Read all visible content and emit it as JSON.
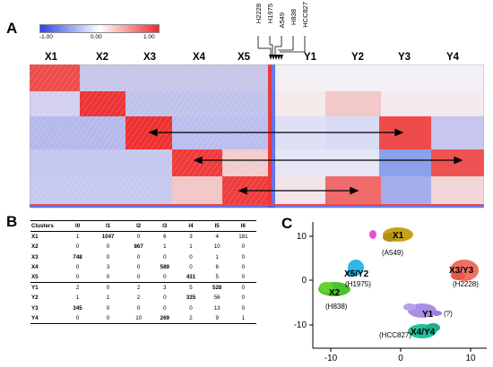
{
  "panels": {
    "a": "A",
    "b": "B",
    "c": "C"
  },
  "colorscale": {
    "min_label": "-1.00",
    "mid_label": "0.00",
    "max_label": "1.00",
    "colors": {
      "low": "#2f45e8",
      "mid": "#ffffff",
      "high": "#ee2b2b"
    }
  },
  "heatmap": {
    "columns": [
      "X1",
      "X2",
      "X3",
      "X4",
      "X5",
      "Y1",
      "Y2",
      "Y3",
      "Y4"
    ],
    "cell_lines": [
      "H2228",
      "H1975",
      "A549",
      "H838",
      "HCC827"
    ]
  },
  "table": {
    "headers": [
      "Clusters",
      "I0",
      "I1",
      "I2",
      "I3",
      "I4",
      "I5",
      "I6"
    ],
    "rows": [
      {
        "label": "X1",
        "cells": [
          "1",
          "1047",
          "0",
          "6",
          "3",
          "4",
          "181"
        ]
      },
      {
        "label": "X2",
        "cells": [
          "0",
          "0",
          "867",
          "1",
          "1",
          "10",
          "0"
        ]
      },
      {
        "label": "X3",
        "cells": [
          "748",
          "0",
          "0",
          "0",
          "0",
          "1",
          "0"
        ]
      },
      {
        "label": "X4",
        "cells": [
          "0",
          "3",
          "0",
          "589",
          "0",
          "6",
          "0"
        ]
      },
      {
        "label": "X5",
        "cells": [
          "0",
          "0",
          "0",
          "0",
          "431",
          "5",
          "0"
        ]
      },
      {
        "label": "Y1",
        "cells": [
          "2",
          "0",
          "2",
          "3",
          "5",
          "528",
          "0"
        ]
      },
      {
        "label": "Y2",
        "cells": [
          "1",
          "1",
          "2",
          "0",
          "335",
          "56",
          "0"
        ]
      },
      {
        "label": "Y3",
        "cells": [
          "345",
          "0",
          "0",
          "0",
          "0",
          "13",
          "0"
        ]
      },
      {
        "label": "Y4",
        "cells": [
          "0",
          "0",
          "10",
          "269",
          "2",
          "9",
          "1"
        ]
      }
    ]
  },
  "umap": {
    "x_ticks": [
      "-10",
      "0",
      "10"
    ],
    "y_ticks": [
      "10",
      "0",
      "-10"
    ],
    "labels": {
      "x1": "X1",
      "a549": "(A549)",
      "x5y2": "X5/Y2",
      "h1975": "(H1975)",
      "x2": "X2",
      "h838": "(H838)",
      "x3y3": "X3/Y3",
      "h2228": "(H2228)",
      "y1": "Y1",
      "q": "(?)",
      "hcc827": "(HCC827)",
      "x4y4": "X4/Y4"
    },
    "cluster_colors": {
      "x1": "#c9a21a",
      "pink": "#e84fd6",
      "x5y2": "#2fb7e6",
      "x2": "#4cc22a",
      "x3y3": "#ef6f63",
      "y1": "#a98ee8",
      "x4y4": "#22c39a"
    }
  }
}
